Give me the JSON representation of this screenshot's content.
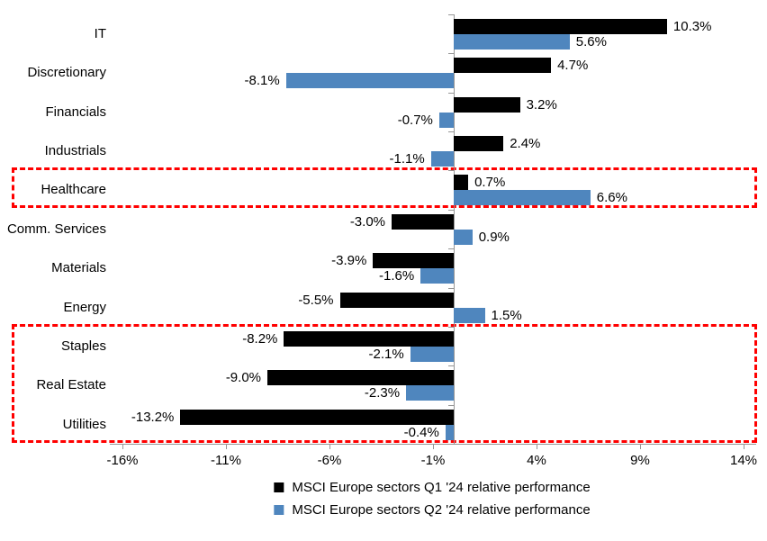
{
  "chart_data": {
    "type": "bar",
    "orientation": "horizontal",
    "categories": [
      "IT",
      "Discretionary",
      "Financials",
      "Industrials",
      "Healthcare",
      "Comm. Services",
      "Materials",
      "Energy",
      "Staples",
      "Real Estate",
      "Utilities"
    ],
    "series": [
      {
        "name": "MSCI Europe sectors Q1 '24 relative performance",
        "color": "#000000",
        "values": [
          10.3,
          4.7,
          3.2,
          2.4,
          0.7,
          -3.0,
          -3.9,
          -5.5,
          -8.2,
          -9.0,
          -13.2
        ],
        "labels": [
          "10.3%",
          "4.7%",
          "3.2%",
          "2.4%",
          "0.7%",
          "-3.0%",
          "-3.9%",
          "-5.5%",
          "-8.2%",
          "-9.0%",
          "-13.2%"
        ]
      },
      {
        "name": "MSCI Europe sectors Q2 '24 relative performance",
        "color": "#4F86BE",
        "values": [
          5.6,
          -8.1,
          -0.7,
          -1.1,
          6.6,
          0.9,
          -1.6,
          1.5,
          -2.1,
          -2.3,
          -0.4
        ],
        "labels": [
          "5.6%",
          "-8.1%",
          "-0.7%",
          "-1.1%",
          "6.6%",
          "0.9%",
          "-1.6%",
          "1.5%",
          "-2.1%",
          "-2.3%",
          "-0.4%"
        ]
      }
    ],
    "xticks": [
      -16,
      -11,
      -6,
      -1,
      4,
      9,
      14
    ],
    "xtick_labels": [
      "-16%",
      "-11%",
      "-6%",
      "-1%",
      "4%",
      "9%",
      "14%"
    ],
    "xlim": [
      -16.6,
      14.6
    ],
    "grid": "off",
    "legend_position": "bottom",
    "highlights": [
      {
        "rows": [
          "Healthcare"
        ],
        "color": "#FF0000"
      },
      {
        "rows": [
          "Staples",
          "Real Estate",
          "Utilities"
        ],
        "color": "#FF0000"
      }
    ]
  }
}
